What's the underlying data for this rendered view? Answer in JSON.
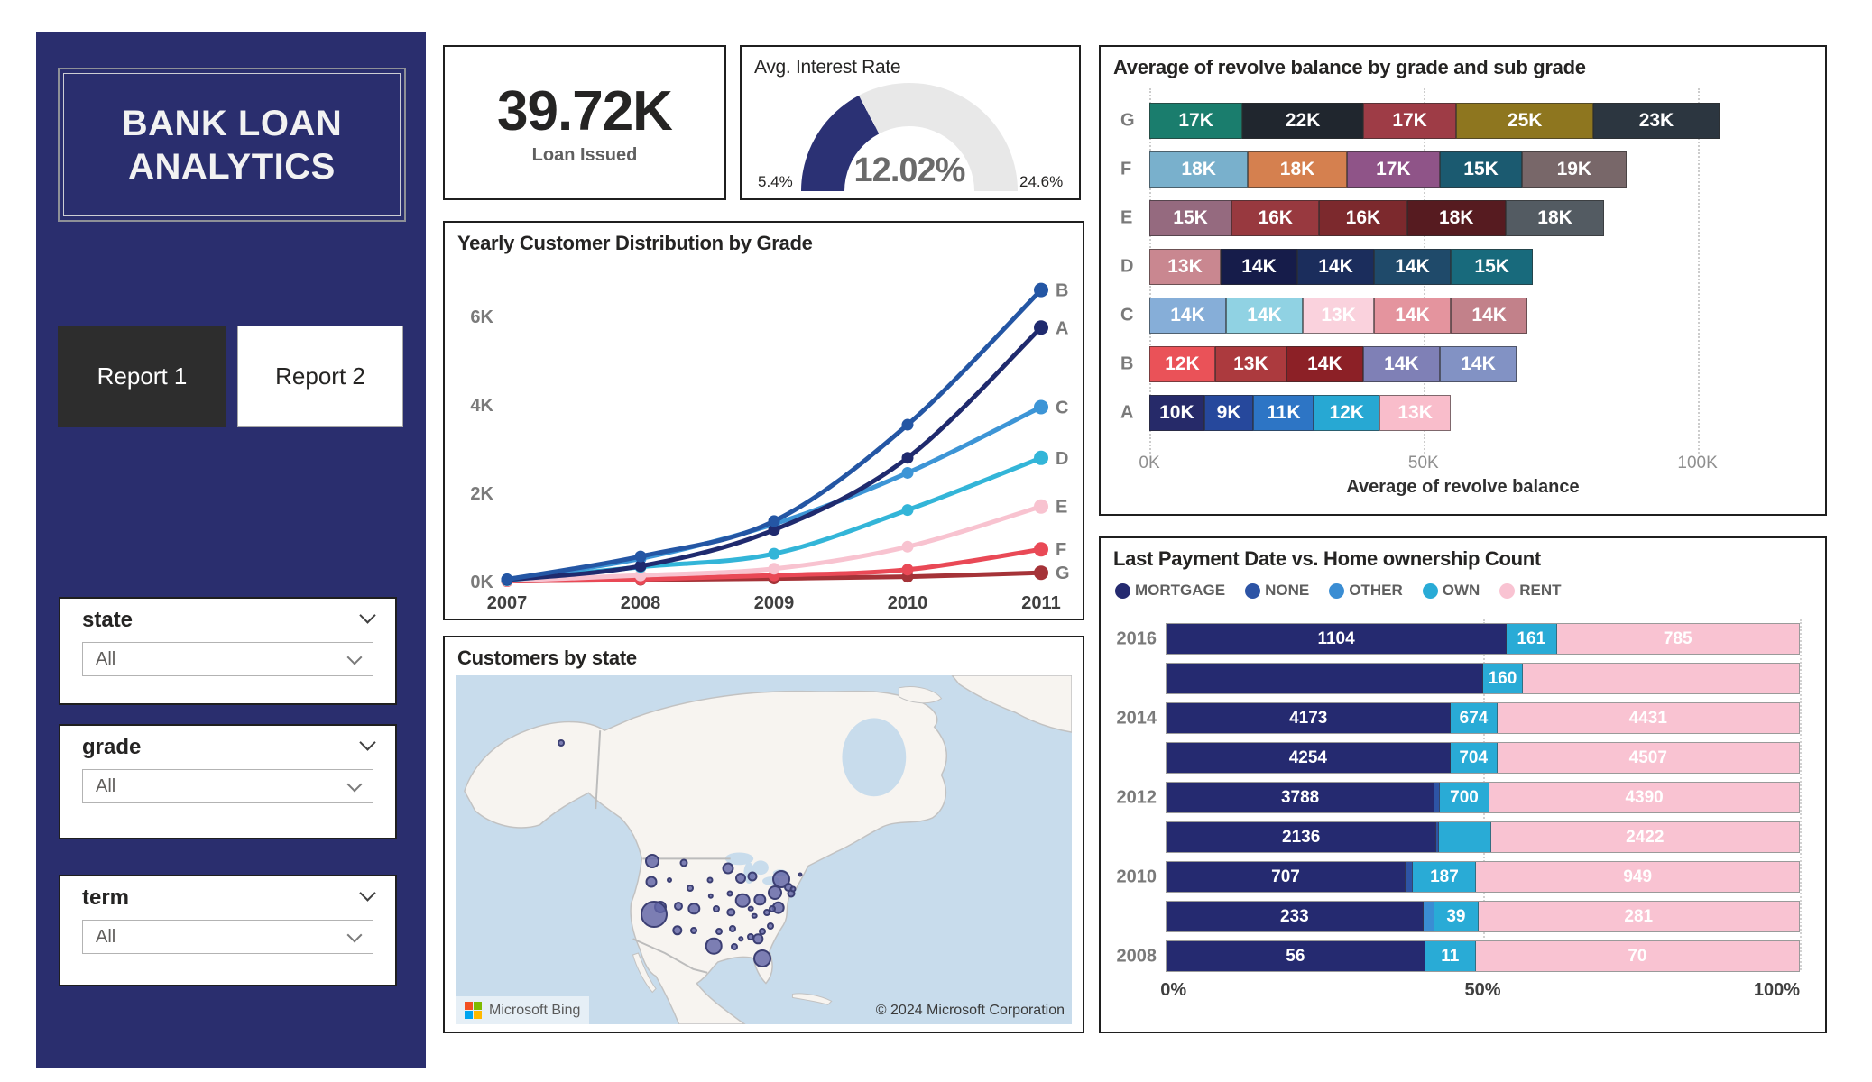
{
  "sidebar": {
    "title_line1": "BANK LOAN",
    "title_line2": "ANALYTICS",
    "reports": [
      {
        "label": "Report 1"
      },
      {
        "label": "Report 2"
      }
    ],
    "slicers": [
      {
        "name": "state",
        "value": "All"
      },
      {
        "name": "grade",
        "value": "All"
      },
      {
        "name": "term",
        "value": "All"
      }
    ]
  },
  "kpi": {
    "value": "39.72K",
    "label": "Loan Issued"
  },
  "gauge": {
    "title": "Avg. Interest Rate",
    "min": 5.4,
    "max": 24.6,
    "value": 12.02,
    "min_label": "5.4%",
    "max_label": "24.6%",
    "value_label": "12.02%",
    "arc_color": "#2b3174",
    "track_color": "#e8e8e8"
  },
  "map": {
    "title": "Customers by state",
    "provider": "Microsoft Bing",
    "attribution": "© 2024 Microsoft Corporation",
    "ocean_color": "#c8dcec",
    "land_color": "#f7f4f0",
    "bubbles": [
      {
        "x": 17.1,
        "y": 19.4,
        "r": 4
      },
      {
        "x": 31.9,
        "y": 53.3,
        "r": 8
      },
      {
        "x": 37.1,
        "y": 53.8,
        "r": 4.5
      },
      {
        "x": 44.2,
        "y": 55.4,
        "r": 6.5
      },
      {
        "x": 46.3,
        "y": 58.2,
        "r": 6
      },
      {
        "x": 48.1,
        "y": 57.7,
        "r": 5.5
      },
      {
        "x": 31.8,
        "y": 59.2,
        "r": 6.5
      },
      {
        "x": 34.7,
        "y": 58.7,
        "r": 3
      },
      {
        "x": 41.3,
        "y": 58.7,
        "r": 3.5
      },
      {
        "x": 38.0,
        "y": 61.0,
        "r": 4
      },
      {
        "x": 41.4,
        "y": 63.3,
        "r": 3.2
      },
      {
        "x": 44.5,
        "y": 62.5,
        "r": 3.5
      },
      {
        "x": 52.9,
        "y": 58.4,
        "r": 10
      },
      {
        "x": 54.0,
        "y": 60.7,
        "r": 5
      },
      {
        "x": 54.5,
        "y": 62.5,
        "r": 4.5
      },
      {
        "x": 54.8,
        "y": 61.2,
        "r": 3.5
      },
      {
        "x": 56.0,
        "y": 57.1,
        "r": 2.5
      },
      {
        "x": 51.9,
        "y": 62.2,
        "r": 8
      },
      {
        "x": 46.6,
        "y": 64.5,
        "r": 8.3
      },
      {
        "x": 49.4,
        "y": 64.3,
        "r": 6.7
      },
      {
        "x": 33.2,
        "y": 66.3,
        "r": 7
      },
      {
        "x": 32.2,
        "y": 68.4,
        "r": 15
      },
      {
        "x": 36.1,
        "y": 66.1,
        "r": 5
      },
      {
        "x": 38.7,
        "y": 66.8,
        "r": 6.7
      },
      {
        "x": 42.3,
        "y": 66.8,
        "r": 4
      },
      {
        "x": 44.7,
        "y": 67.9,
        "r": 4.7
      },
      {
        "x": 47.9,
        "y": 66.8,
        "r": 3.3
      },
      {
        "x": 50.5,
        "y": 67.9,
        "r": 4
      },
      {
        "x": 52.4,
        "y": 66.6,
        "r": 7.3
      },
      {
        "x": 51.4,
        "y": 66.8,
        "r": 4
      },
      {
        "x": 48.5,
        "y": 68.9,
        "r": 3.3
      },
      {
        "x": 36.0,
        "y": 73.0,
        "r": 5.7
      },
      {
        "x": 38.6,
        "y": 73.0,
        "r": 4
      },
      {
        "x": 42.7,
        "y": 73.5,
        "r": 4
      },
      {
        "x": 44.9,
        "y": 72.7,
        "r": 4
      },
      {
        "x": 51.1,
        "y": 71.9,
        "r": 4
      },
      {
        "x": 49.8,
        "y": 73.5,
        "r": 4
      },
      {
        "x": 49.1,
        "y": 75.5,
        "r": 5.7
      },
      {
        "x": 47.9,
        "y": 75.0,
        "r": 4
      },
      {
        "x": 46.3,
        "y": 75.5,
        "r": 2.7
      },
      {
        "x": 41.9,
        "y": 77.6,
        "r": 9.3
      },
      {
        "x": 45.2,
        "y": 77.8,
        "r": 4
      },
      {
        "x": 49.8,
        "y": 81.1,
        "r": 10
      }
    ]
  },
  "chart_data": [
    {
      "id": "revolve",
      "type": "bar",
      "title": "Average of revolve balance by grade and sub grade",
      "xlabel": "Average of revolve balance",
      "x_ticks": [
        "0K",
        "50K",
        "100K"
      ],
      "x_tick_values": [
        0,
        50,
        100
      ],
      "xmax": 119,
      "rows": [
        {
          "grade": "G",
          "segments": [
            {
              "label": "17K",
              "value": 17,
              "color": "#1a7d6d"
            },
            {
              "label": "22K",
              "value": 22,
              "color": "#20262e"
            },
            {
              "label": "17K",
              "value": 17,
              "color": "#9e3c46"
            },
            {
              "label": "25K",
              "value": 25,
              "color": "#8e761f"
            },
            {
              "label": "23K",
              "value": 23,
              "color": "#2c3640"
            }
          ]
        },
        {
          "grade": "F",
          "segments": [
            {
              "label": "18K",
              "value": 18,
              "color": "#79b0cc"
            },
            {
              "label": "18K",
              "value": 18,
              "color": "#d5804f"
            },
            {
              "label": "17K",
              "value": 17,
              "color": "#8f5488"
            },
            {
              "label": "15K",
              "value": 15,
              "color": "#1b5a70"
            },
            {
              "label": "19K",
              "value": 19,
              "color": "#786769"
            }
          ]
        },
        {
          "grade": "E",
          "segments": [
            {
              "label": "15K",
              "value": 15,
              "color": "#956a7f"
            },
            {
              "label": "16K",
              "value": 16,
              "color": "#98393f"
            },
            {
              "label": "16K",
              "value": 16,
              "color": "#7c292d"
            },
            {
              "label": "18K",
              "value": 18,
              "color": "#561b20"
            },
            {
              "label": "18K",
              "value": 18,
              "color": "#535b62"
            }
          ]
        },
        {
          "grade": "D",
          "segments": [
            {
              "label": "13K",
              "value": 13,
              "color": "#c98790"
            },
            {
              "label": "14K",
              "value": 14,
              "color": "#161c4a"
            },
            {
              "label": "14K",
              "value": 14,
              "color": "#1b2d5c"
            },
            {
              "label": "14K",
              "value": 14,
              "color": "#1f4a6a"
            },
            {
              "label": "15K",
              "value": 15,
              "color": "#186a7c"
            }
          ]
        },
        {
          "grade": "C",
          "segments": [
            {
              "label": "14K",
              "value": 14,
              "color": "#86aed8"
            },
            {
              "label": "14K",
              "value": 14,
              "color": "#90d2e3"
            },
            {
              "label": "13K",
              "value": 13,
              "color": "#fad2dd"
            },
            {
              "label": "14K",
              "value": 14,
              "color": "#e4949e"
            },
            {
              "label": "14K",
              "value": 14,
              "color": "#c2818a"
            }
          ]
        },
        {
          "grade": "B",
          "segments": [
            {
              "label": "12K",
              "value": 12,
              "color": "#ea5258"
            },
            {
              "label": "13K",
              "value": 13,
              "color": "#ac3a3e"
            },
            {
              "label": "14K",
              "value": 14,
              "color": "#8c2026"
            },
            {
              "label": "14K",
              "value": 14,
              "color": "#7f80b6"
            },
            {
              "label": "14K",
              "value": 14,
              "color": "#8292c4"
            }
          ]
        },
        {
          "grade": "A",
          "segments": [
            {
              "label": "10K",
              "value": 10,
              "color": "#262a69"
            },
            {
              "label": "9K",
              "value": 9,
              "color": "#26489c"
            },
            {
              "label": "11K",
              "value": 11,
              "color": "#2d75c5"
            },
            {
              "label": "12K",
              "value": 12,
              "color": "#27a8d3"
            },
            {
              "label": "13K",
              "value": 13,
              "color": "#f9bdcb"
            }
          ]
        }
      ]
    },
    {
      "id": "yearly",
      "type": "line",
      "title": "Yearly Customer Distribution by Grade",
      "x": [
        "2007",
        "2008",
        "2009",
        "2010",
        "2011"
      ],
      "y_ticks": [
        {
          "label": "0K",
          "value": 0
        },
        {
          "label": "2K",
          "value": 2
        },
        {
          "label": "4K",
          "value": 4
        },
        {
          "label": "6K",
          "value": 6
        }
      ],
      "ylim": [
        0,
        7.2
      ],
      "series": [
        {
          "name": "G",
          "color": "#a53338",
          "values": [
            0.01,
            0.04,
            0.07,
            0.11,
            0.2
          ]
        },
        {
          "name": "F",
          "color": "#e94956",
          "values": [
            0.01,
            0.05,
            0.14,
            0.27,
            0.73
          ]
        },
        {
          "name": "E",
          "color": "#f8c3d0",
          "values": [
            0.02,
            0.14,
            0.29,
            0.79,
            1.7
          ]
        },
        {
          "name": "D",
          "color": "#33b5d8",
          "values": [
            0.03,
            0.33,
            0.63,
            1.62,
            2.8
          ]
        },
        {
          "name": "C",
          "color": "#3d95d6",
          "values": [
            0.05,
            0.52,
            1.3,
            2.46,
            3.95
          ]
        },
        {
          "name": "A",
          "color": "#1f2a6e",
          "values": [
            0.04,
            0.35,
            1.17,
            2.8,
            5.75
          ]
        },
        {
          "name": "B",
          "color": "#2456a4",
          "values": [
            0.05,
            0.57,
            1.37,
            3.55,
            6.6
          ]
        }
      ]
    },
    {
      "id": "payment",
      "type": "bar",
      "title": "Last Payment Date vs. Home ownership Count",
      "legend": [
        {
          "label": "MORTGAGE",
          "color": "#252a70"
        },
        {
          "label": "NONE",
          "color": "#2d54a5"
        },
        {
          "label": "OTHER",
          "color": "#3a8dd3"
        },
        {
          "label": "OWN",
          "color": "#29abd6"
        },
        {
          "label": "RENT",
          "color": "#f9c3d2"
        }
      ],
      "x_ticks": [
        "0%",
        "50%",
        "100%"
      ],
      "rows": [
        {
          "year": "2016",
          "segments": [
            {
              "key": "MORTGAGE",
              "pct": 53.8,
              "label": "1104"
            },
            {
              "key": "OWN",
              "pct": 7.9,
              "label": "161"
            },
            {
              "key": "RENT",
              "pct": 38.3,
              "label": "785"
            }
          ]
        },
        {
          "year": "",
          "segments": [
            {
              "key": "MORTGAGE",
              "pct": 50.0,
              "label": ""
            },
            {
              "key": "OWN",
              "pct": 6.4,
              "label": "160"
            },
            {
              "key": "RENT",
              "pct": 43.6,
              "label": ""
            }
          ]
        },
        {
          "year": "2014",
          "segments": [
            {
              "key": "MORTGAGE",
              "pct": 45.0,
              "label": "4173"
            },
            {
              "key": "OWN",
              "pct": 7.3,
              "label": "674"
            },
            {
              "key": "RENT",
              "pct": 47.7,
              "label": "4431"
            }
          ]
        },
        {
          "year": "",
          "segments": [
            {
              "key": "MORTGAGE",
              "pct": 44.9,
              "label": "4254"
            },
            {
              "key": "OWN",
              "pct": 7.4,
              "label": "704"
            },
            {
              "key": "RENT",
              "pct": 47.7,
              "label": "4507"
            }
          ]
        },
        {
          "year": "2012",
          "segments": [
            {
              "key": "MORTGAGE",
              "pct": 42.4,
              "label": "3788"
            },
            {
              "key": "NONE",
              "pct": 0.8,
              "label": ""
            },
            {
              "key": "OWN",
              "pct": 7.9,
              "label": "700"
            },
            {
              "key": "RENT",
              "pct": 48.9,
              "label": "4390"
            }
          ]
        },
        {
          "year": "",
          "segments": [
            {
              "key": "MORTGAGE",
              "pct": 42.7,
              "label": "2136"
            },
            {
              "key": "NONE",
              "pct": 0.4,
              "label": ""
            },
            {
              "key": "OWN",
              "pct": 8.2,
              "label": ""
            },
            {
              "key": "RENT",
              "pct": 48.7,
              "label": "2422"
            }
          ]
        },
        {
          "year": "2010",
          "segments": [
            {
              "key": "MORTGAGE",
              "pct": 37.8,
              "label": "707"
            },
            {
              "key": "NONE",
              "pct": 1.2,
              "label": ""
            },
            {
              "key": "OWN",
              "pct": 10.0,
              "label": "187"
            },
            {
              "key": "RENT",
              "pct": 51.0,
              "label": "949"
            }
          ]
        },
        {
          "year": "",
          "segments": [
            {
              "key": "MORTGAGE",
              "pct": 40.6,
              "label": "233"
            },
            {
              "key": "OTHER",
              "pct": 1.8,
              "label": ""
            },
            {
              "key": "OWN",
              "pct": 6.9,
              "label": "39"
            },
            {
              "key": "RENT",
              "pct": 50.7,
              "label": "281"
            }
          ]
        },
        {
          "year": "2008",
          "segments": [
            {
              "key": "MORTGAGE",
              "pct": 40.9,
              "label": "56"
            },
            {
              "key": "OWN",
              "pct": 8.0,
              "label": "11"
            },
            {
              "key": "RENT",
              "pct": 51.1,
              "label": "70"
            }
          ]
        }
      ]
    }
  ]
}
